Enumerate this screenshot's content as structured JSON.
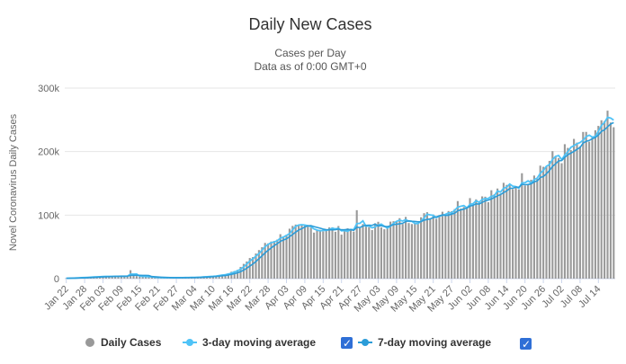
{
  "chart_data": {
    "type": "bar",
    "title": "Daily New Cases",
    "subtitle_lines": [
      "Cases per Day",
      "Data as of 0:00 GMT+0"
    ],
    "ylabel": "Novel Coronavirus Daily Cases",
    "xlabel": "",
    "ylim": [
      0,
      300000
    ],
    "y_ticks": [
      0,
      100000,
      200000,
      300000
    ],
    "y_tick_labels": [
      "0",
      "100k",
      "200k",
      "300k"
    ],
    "grid": true,
    "legend_position": "bottom",
    "x_tick_labels": [
      "Jan 22",
      "Jan 28",
      "Feb 03",
      "Feb 09",
      "Feb 15",
      "Feb 21",
      "Feb 27",
      "Mar 04",
      "Mar 10",
      "Mar 16",
      "Mar 22",
      "Mar 28",
      "Apr 03",
      "Apr 09",
      "Apr 15",
      "Apr 21",
      "Apr 27",
      "May 03",
      "May 09",
      "May 15",
      "May 21",
      "May 27",
      "Jun 02",
      "Jun 08",
      "Jun 14",
      "Jun 20",
      "Jun 26",
      "Jul 02",
      "Jul 08",
      "Jul 14"
    ],
    "start_label": "Jan 22",
    "anchors": [
      [
        0,
        500
      ],
      [
        6,
        2000
      ],
      [
        12,
        3500
      ],
      [
        20,
        4000
      ],
      [
        21,
        14000
      ],
      [
        22,
        4000
      ],
      [
        26,
        3000
      ],
      [
        30,
        1500
      ],
      [
        36,
        1500
      ],
      [
        42,
        2000
      ],
      [
        48,
        4000
      ],
      [
        52,
        7000
      ],
      [
        56,
        15000
      ],
      [
        60,
        30000
      ],
      [
        64,
        50000
      ],
      [
        68,
        62000
      ],
      [
        72,
        72000
      ],
      [
        74,
        78000
      ],
      [
        78,
        80000
      ],
      [
        82,
        79000
      ],
      [
        86,
        78000
      ],
      [
        90,
        76000
      ],
      [
        94,
        80000
      ],
      [
        95,
        99000
      ],
      [
        96,
        80000
      ],
      [
        100,
        82000
      ],
      [
        104,
        85000
      ],
      [
        108,
        88000
      ],
      [
        112,
        93000
      ],
      [
        116,
        96000
      ],
      [
        120,
        101000
      ],
      [
        124,
        107000
      ],
      [
        128,
        116000
      ],
      [
        132,
        124000
      ],
      [
        136,
        130000
      ],
      [
        140,
        134000
      ],
      [
        144,
        142000
      ],
      [
        148,
        152000
      ],
      [
        152,
        165000
      ],
      [
        156,
        178000
      ],
      [
        160,
        190000
      ],
      [
        164,
        200000
      ],
      [
        168,
        210000
      ],
      [
        172,
        222000
      ],
      [
        175,
        232000
      ],
      [
        176,
        246000
      ],
      [
        178,
        240000
      ],
      [
        179,
        225000
      ]
    ],
    "series": [
      {
        "name": "Daily Cases",
        "kind": "bar",
        "color": "#999999"
      },
      {
        "name": "3-day moving average",
        "kind": "line",
        "color": "#4fc3f7",
        "window": 3
      },
      {
        "name": "7-day moving average",
        "kind": "line",
        "color": "#2b9cd8",
        "window": 7
      }
    ]
  },
  "legend": {
    "items": [
      {
        "label": "Daily Cases",
        "color": "#999999",
        "marker": "circle"
      },
      {
        "label": "3-day moving average",
        "color": "#4fc3f7",
        "marker": "line",
        "checked": true
      },
      {
        "label": "7-day moving average",
        "color": "#2b9cd8",
        "marker": "line",
        "checked": true
      }
    ]
  },
  "colors": {
    "checkbox": "#2f6fd6",
    "grid": "#e6e6e6",
    "axis": "#ccd6eb"
  }
}
